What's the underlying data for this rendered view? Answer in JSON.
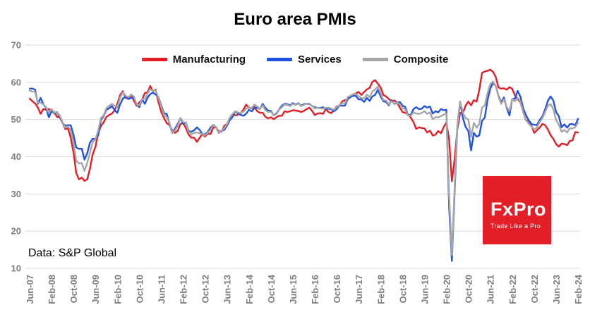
{
  "chart": {
    "title": "Euro area PMIs",
    "source_note": "Data: S&P Global"
  },
  "logo": {
    "brand": "FxPro",
    "tagline": "Trade Like a Pro",
    "background_color": "#e21f26",
    "text_color": "#ffffff"
  },
  "chart_data": {
    "type": "line",
    "x_start": "Jun-07",
    "x_end": "Feb-24",
    "x_frequency": "monthly",
    "x_tick_every_n_months": 8,
    "x_tick_labels": [
      "Jun-07",
      "Feb-08",
      "Oct-08",
      "Jun-09",
      "Feb-10",
      "Oct-10",
      "Jun-11",
      "Feb-12",
      "Oct-12",
      "Jun-13",
      "Feb-14",
      "Oct-14",
      "Jun-15",
      "Feb-16",
      "Oct-16",
      "Jun-17",
      "Feb-18",
      "Oct-18",
      "Jun-19",
      "Feb-20",
      "Oct-20",
      "Jun-21",
      "Feb-22",
      "Oct-22",
      "Jun-23",
      "Feb-24"
    ],
    "ylim": [
      10,
      70
    ],
    "y_ticks": [
      10,
      20,
      30,
      40,
      50,
      60,
      70
    ],
    "grid": "horizontal",
    "legend_position": "top",
    "series": [
      {
        "name": "Manufacturing",
        "color": "#e21f26",
        "values": [
          55.6,
          54.9,
          54.3,
          53.2,
          51.5,
          52.8,
          52.6,
          52.8,
          52.3,
          52.0,
          50.7,
          50.6,
          49.2,
          47.4,
          47.6,
          45.0,
          41.1,
          35.6,
          33.9,
          34.4,
          33.5,
          33.9,
          36.8,
          40.7,
          42.6,
          46.3,
          48.2,
          49.3,
          50.7,
          51.2,
          51.6,
          52.4,
          54.2,
          56.6,
          57.6,
          55.8,
          55.6,
          56.7,
          55.1,
          53.7,
          54.6,
          55.3,
          57.1,
          57.3,
          59.0,
          57.5,
          58.0,
          54.6,
          52.0,
          50.4,
          49.0,
          48.5,
          47.1,
          46.4,
          46.9,
          48.8,
          49.0,
          47.7,
          45.9,
          45.1,
          45.1,
          44.0,
          45.1,
          46.1,
          45.4,
          46.2,
          46.1,
          47.9,
          47.9,
          46.8,
          46.7,
          48.3,
          48.8,
          50.3,
          51.4,
          51.1,
          51.3,
          51.6,
          52.7,
          54.0,
          53.2,
          53.0,
          53.4,
          52.2,
          51.8,
          51.8,
          50.7,
          50.3,
          50.6,
          50.1,
          50.6,
          51.0,
          51.0,
          52.2,
          52.0,
          52.2,
          52.5,
          52.4,
          52.3,
          52.0,
          52.3,
          52.8,
          53.2,
          52.3,
          51.2,
          51.6,
          51.7,
          51.5,
          52.8,
          52.0,
          51.7,
          52.6,
          53.5,
          53.7,
          54.9,
          55.2,
          55.4,
          56.2,
          56.7,
          57.0,
          57.4,
          56.6,
          57.4,
          58.1,
          58.5,
          60.1,
          60.6,
          59.6,
          58.6,
          56.6,
          56.2,
          55.5,
          54.9,
          55.1,
          54.6,
          53.2,
          52.0,
          51.8,
          51.4,
          50.5,
          49.3,
          47.5,
          47.9,
          47.7,
          47.6,
          46.5,
          47.0,
          45.7,
          45.9,
          46.9,
          46.3,
          47.9,
          49.2,
          44.5,
          33.4,
          39.4,
          47.4,
          51.8,
          51.7,
          53.7,
          54.8,
          53.8,
          55.2,
          54.8,
          57.9,
          62.5,
          62.9,
          63.1,
          63.4,
          62.8,
          61.4,
          58.6,
          58.3,
          58.4,
          58.0,
          58.7,
          58.2,
          56.5,
          55.5,
          54.6,
          52.1,
          49.8,
          49.6,
          48.4,
          46.4,
          47.1,
          47.8,
          48.8,
          48.5,
          47.3,
          45.8,
          44.8,
          43.4,
          42.7,
          43.5,
          43.4,
          43.1,
          44.2,
          44.4,
          46.6,
          46.5
        ]
      },
      {
        "name": "Services",
        "color": "#2353dd",
        "values": [
          58.3,
          58.3,
          58.0,
          54.2,
          55.8,
          54.1,
          53.1,
          50.6,
          52.3,
          51.6,
          52.0,
          50.6,
          49.1,
          48.3,
          48.5,
          48.4,
          45.8,
          42.5,
          42.1,
          42.2,
          39.2,
          40.9,
          43.8,
          44.8,
          44.7,
          45.7,
          49.9,
          50.9,
          52.6,
          53.0,
          53.6,
          52.5,
          51.8,
          54.1,
          55.6,
          56.2,
          55.5,
          55.8,
          55.9,
          54.1,
          53.3,
          55.4,
          54.2,
          55.9,
          56.8,
          57.2,
          56.7,
          56.0,
          53.7,
          51.6,
          51.5,
          48.8,
          46.4,
          47.5,
          48.8,
          50.4,
          48.8,
          49.2,
          46.9,
          46.7,
          47.1,
          47.9,
          47.2,
          46.1,
          46.0,
          46.7,
          47.8,
          48.6,
          47.9,
          46.4,
          47.0,
          47.2,
          48.3,
          49.8,
          50.7,
          52.2,
          51.6,
          51.2,
          51.0,
          51.6,
          52.6,
          52.2,
          53.1,
          53.2,
          52.8,
          54.2,
          53.1,
          52.4,
          52.3,
          51.1,
          51.6,
          52.7,
          53.7,
          54.2,
          54.1,
          53.8,
          54.4,
          54.0,
          54.4,
          53.7,
          54.1,
          54.2,
          54.2,
          53.6,
          53.3,
          53.1,
          53.1,
          53.3,
          52.8,
          52.9,
          52.8,
          52.2,
          52.8,
          53.8,
          53.7,
          53.7,
          55.5,
          56.0,
          56.4,
          56.3,
          55.4,
          55.4,
          54.7,
          55.8,
          55.0,
          56.2,
          56.6,
          58.0,
          56.2,
          54.9,
          54.7,
          53.8,
          55.2,
          54.2,
          54.4,
          54.7,
          53.7,
          53.4,
          51.2,
          51.2,
          52.8,
          53.3,
          52.8,
          52.9,
          53.6,
          53.2,
          53.5,
          51.6,
          52.2,
          51.9,
          52.8,
          52.5,
          52.6,
          26.4,
          12.0,
          30.5,
          48.3,
          54.7,
          50.5,
          48.0,
          46.9,
          41.7,
          46.4,
          45.4,
          45.7,
          49.6,
          50.5,
          55.2,
          58.3,
          59.8,
          59.0,
          56.4,
          54.6,
          55.9,
          53.1,
          51.1,
          55.5,
          55.6,
          57.7,
          56.1,
          53.0,
          51.2,
          49.8,
          48.8,
          48.6,
          48.5,
          49.8,
          50.8,
          52.7,
          55.0,
          56.2,
          55.1,
          52.0,
          50.9,
          47.9,
          48.7,
          47.8,
          48.7,
          48.8,
          48.4,
          50.2
        ]
      },
      {
        "name": "Composite",
        "color": "#a6a6a6",
        "values": [
          57.8,
          57.5,
          57.4,
          54.5,
          54.5,
          54.1,
          53.3,
          51.8,
          52.8,
          51.8,
          51.9,
          51.1,
          49.3,
          47.8,
          48.2,
          47.0,
          43.6,
          38.9,
          38.2,
          38.3,
          36.2,
          38.3,
          41.1,
          44.0,
          44.6,
          47.0,
          50.4,
          51.1,
          53.0,
          53.7,
          54.2,
          53.7,
          53.3,
          55.9,
          57.3,
          56.4,
          56.0,
          56.7,
          56.2,
          54.1,
          53.8,
          55.5,
          55.5,
          57.0,
          58.2,
          57.6,
          57.8,
          55.8,
          53.3,
          51.1,
          50.7,
          49.1,
          46.5,
          47.0,
          48.3,
          50.4,
          49.3,
          49.1,
          46.7,
          46.0,
          46.4,
          46.5,
          46.3,
          46.1,
          45.7,
          46.5,
          47.2,
          48.6,
          47.9,
          46.5,
          46.9,
          47.7,
          48.7,
          50.5,
          51.5,
          52.2,
          51.9,
          51.7,
          52.1,
          52.9,
          53.3,
          53.1,
          54.0,
          53.5,
          52.8,
          53.8,
          52.5,
          52.0,
          52.1,
          51.1,
          51.4,
          52.6,
          53.3,
          54.0,
          53.9,
          53.6,
          54.2,
          53.9,
          54.3,
          53.6,
          53.9,
          54.2,
          54.3,
          53.6,
          53.0,
          53.1,
          53.0,
          52.9,
          53.1,
          53.2,
          52.9,
          52.6,
          53.3,
          53.9,
          54.4,
          54.4,
          56.0,
          56.4,
          56.8,
          56.8,
          56.3,
          55.7,
          55.7,
          56.7,
          56.0,
          57.5,
          58.1,
          58.8,
          57.1,
          55.2,
          55.1,
          54.1,
          54.9,
          54.3,
          54.5,
          54.1,
          53.1,
          52.7,
          51.1,
          51.0,
          51.9,
          51.6,
          51.5,
          51.8,
          52.2,
          51.5,
          51.9,
          50.1,
          50.6,
          50.6,
          50.9,
          51.3,
          51.6,
          29.7,
          13.6,
          31.9,
          48.5,
          54.9,
          51.9,
          50.4,
          50.0,
          45.3,
          49.1,
          47.8,
          48.8,
          53.2,
          53.8,
          57.1,
          59.5,
          60.2,
          59.0,
          56.2,
          54.2,
          55.4,
          53.3,
          52.3,
          55.5,
          54.9,
          55.8,
          54.8,
          52.0,
          49.9,
          48.9,
          48.1,
          47.3,
          47.8,
          49.3,
          50.3,
          52.0,
          53.7,
          54.1,
          52.8,
          49.9,
          48.6,
          46.7,
          47.2,
          46.5,
          47.6,
          47.6,
          47.9,
          49.2
        ]
      }
    ]
  }
}
